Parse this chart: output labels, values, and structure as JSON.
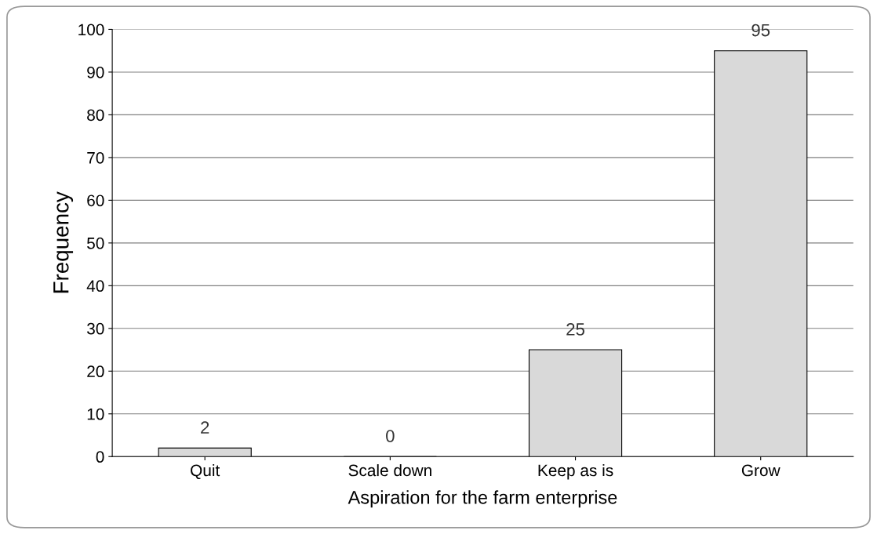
{
  "chart_data": {
    "type": "bar",
    "xlabel": "Aspiration for the farm enterprise",
    "ylabel": "Frequency",
    "categories": [
      "Quit",
      "Scale down",
      "Keep as is",
      "Grow"
    ],
    "values": [
      2,
      0,
      25,
      95
    ],
    "color": "#d9d9d9",
    "ylim": [
      0,
      100
    ],
    "yticks": [
      0,
      10,
      20,
      30,
      40,
      50,
      60,
      70,
      80,
      90,
      100
    ],
    "grid": "y",
    "data_labels": true
  }
}
